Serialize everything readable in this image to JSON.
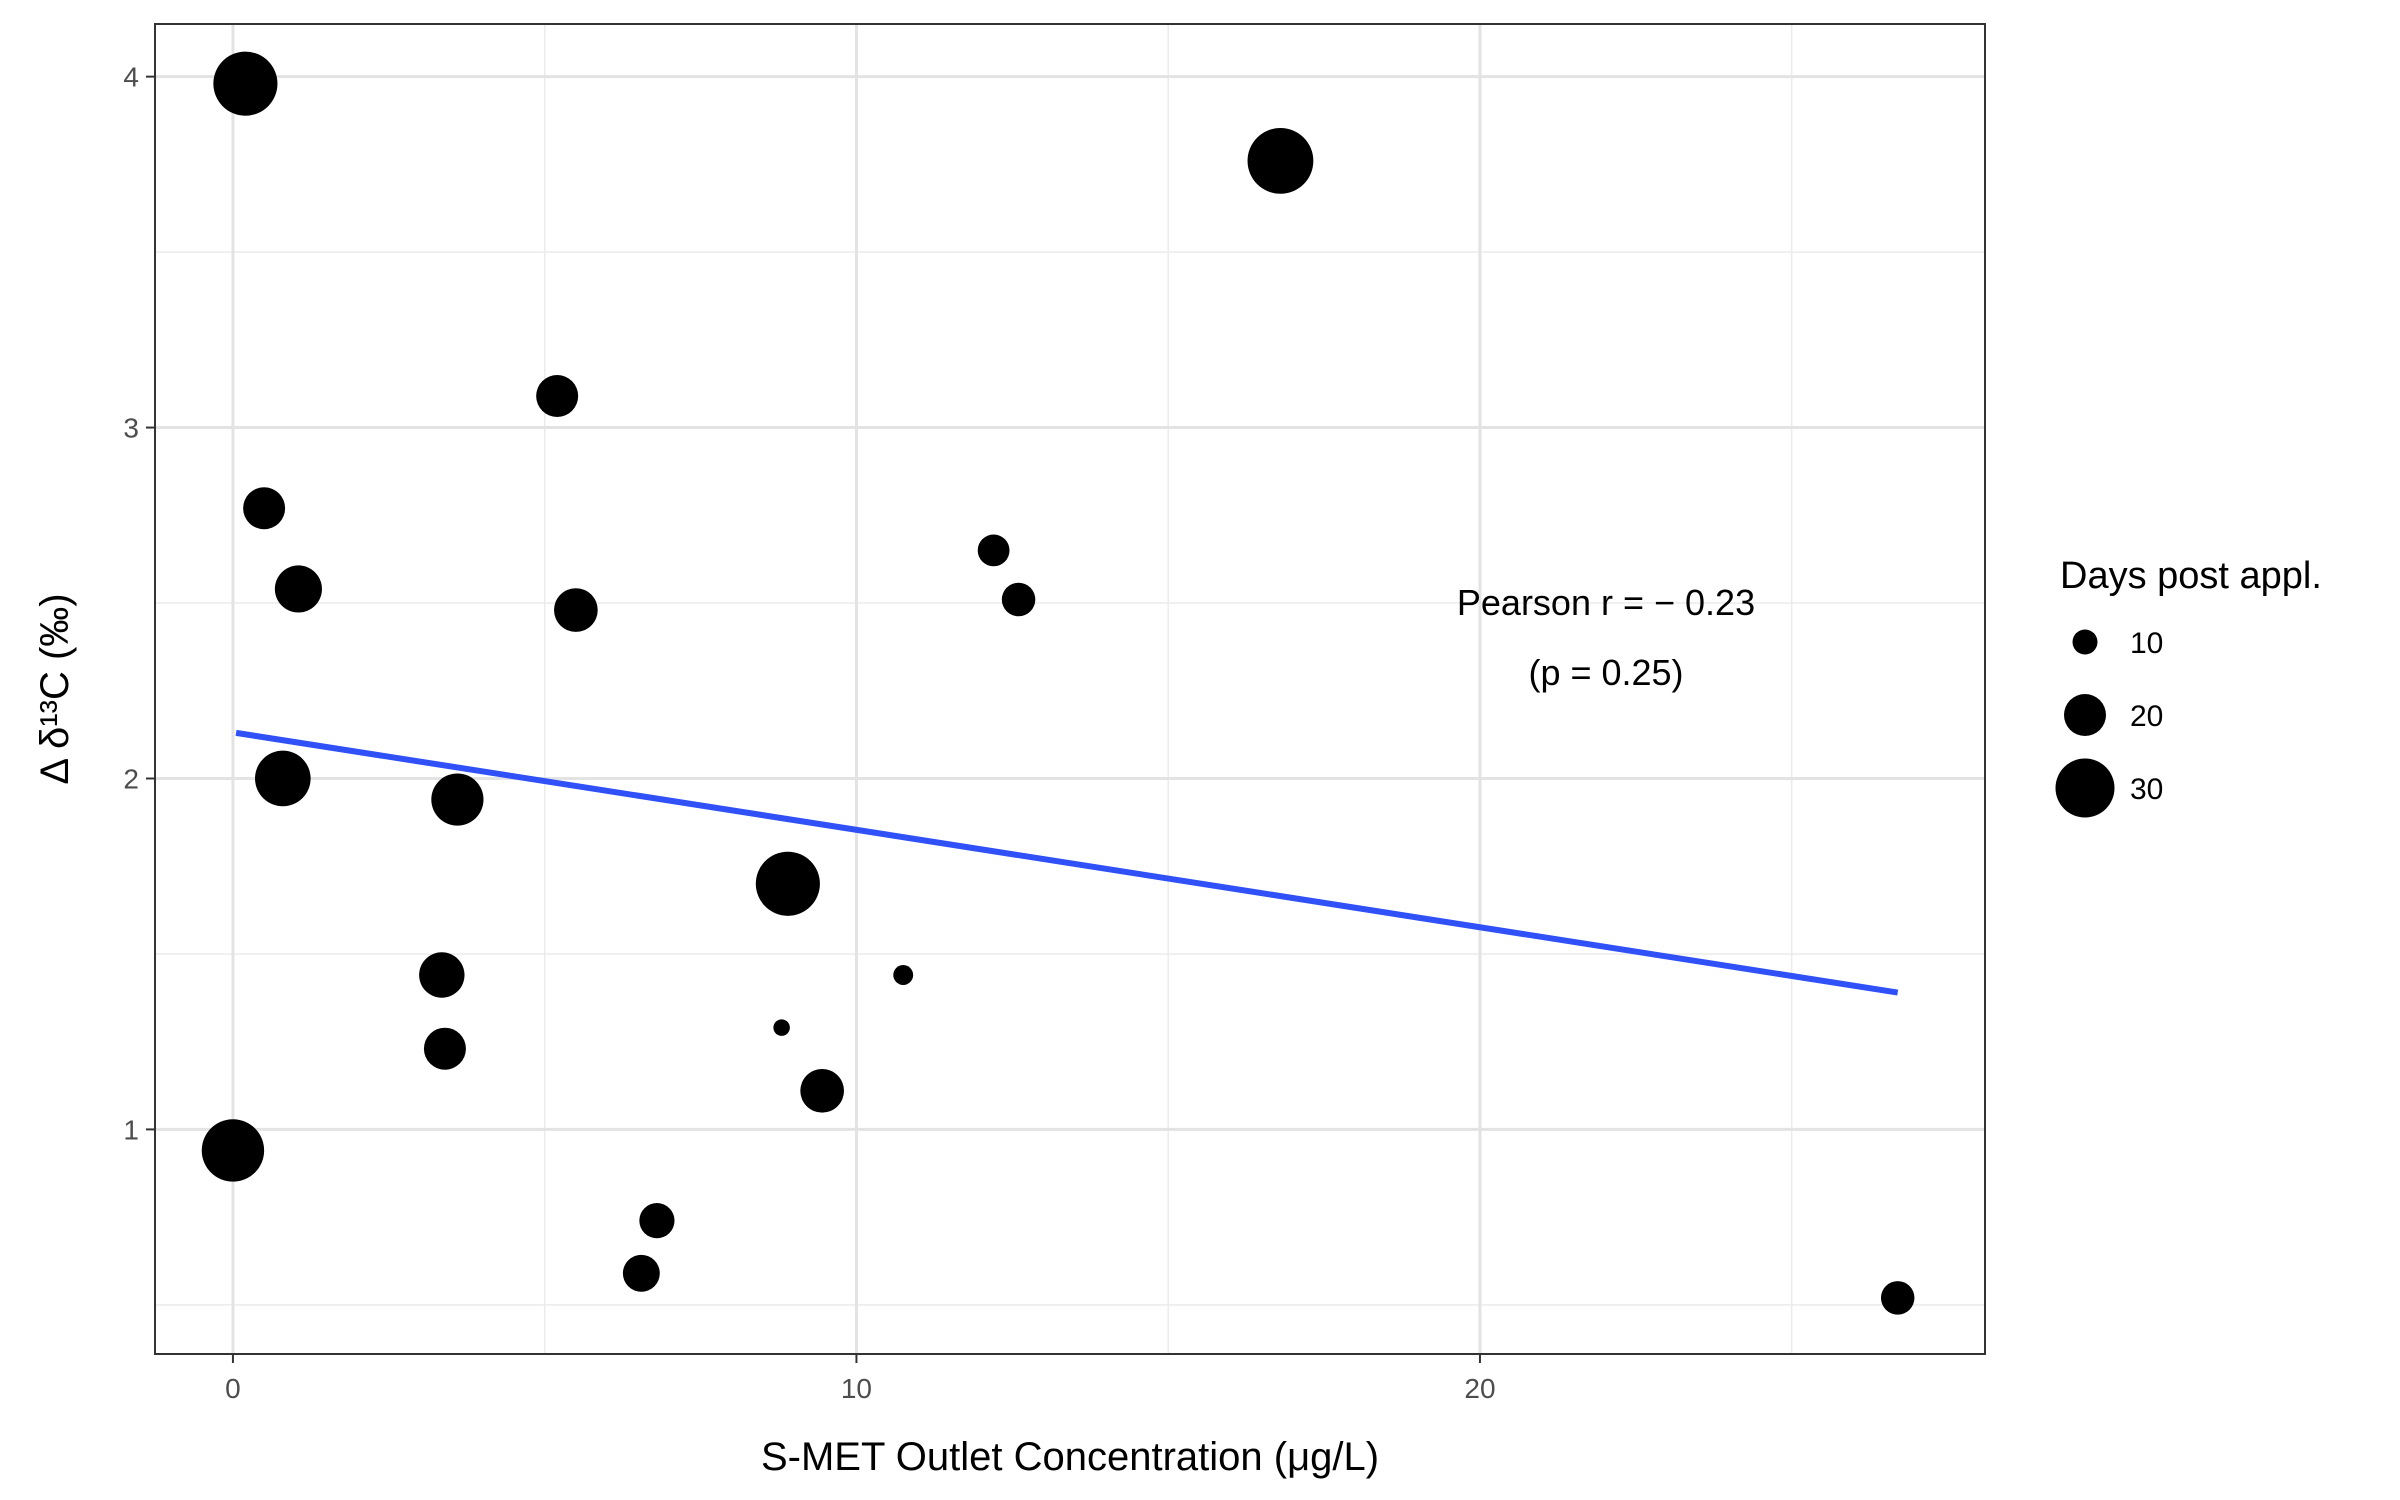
{
  "chart_data": {
    "type": "scatter",
    "xlabel": "S-MET Outlet Concentration (μg/L)",
    "ylabel": "Δ δ¹³C (‰)",
    "xlim": [
      -1.25,
      28.1
    ],
    "ylim": [
      0.36,
      4.15
    ],
    "x_ticks": [
      0,
      10,
      20
    ],
    "y_ticks": [
      1,
      2,
      3,
      4
    ],
    "x_minor_ticks": [
      5,
      15,
      25
    ],
    "y_minor_ticks": [
      0.5,
      1.5,
      2.5,
      3.5
    ],
    "grid": true,
    "point_color": "#000000",
    "trend_color": "#3050f8",
    "trendline": {
      "x": [
        0.05,
        26.7
      ],
      "y": [
        2.13,
        1.39
      ]
    },
    "annotation": {
      "line1": "Pearson r = − 0.23",
      "line2": "(p = 0.25)"
    },
    "legend": {
      "title": "Days post appl.",
      "position": "right",
      "entries": [
        {
          "label": "10",
          "days": 10
        },
        {
          "label": "20",
          "days": 20
        },
        {
          "label": "30",
          "days": 30
        }
      ]
    },
    "points": [
      {
        "x": 0.2,
        "y": 3.98,
        "days": 33
      },
      {
        "x": 0.5,
        "y": 2.77,
        "days": 20
      },
      {
        "x": 1.05,
        "y": 2.54,
        "days": 23
      },
      {
        "x": 0.8,
        "y": 2.0,
        "days": 28
      },
      {
        "x": 0.0,
        "y": 0.94,
        "days": 32
      },
      {
        "x": 3.6,
        "y": 1.94,
        "days": 26
      },
      {
        "x": 3.35,
        "y": 1.44,
        "days": 22
      },
      {
        "x": 3.4,
        "y": 1.23,
        "days": 20
      },
      {
        "x": 5.2,
        "y": 3.09,
        "days": 20
      },
      {
        "x": 5.5,
        "y": 2.48,
        "days": 21
      },
      {
        "x": 6.55,
        "y": 0.59,
        "days": 17
      },
      {
        "x": 6.8,
        "y": 0.74,
        "days": 16
      },
      {
        "x": 8.9,
        "y": 1.7,
        "days": 33
      },
      {
        "x": 8.8,
        "y": 1.29,
        "days": 5
      },
      {
        "x": 9.45,
        "y": 1.11,
        "days": 21
      },
      {
        "x": 10.75,
        "y": 1.44,
        "days": 7
      },
      {
        "x": 12.2,
        "y": 2.65,
        "days": 14
      },
      {
        "x": 12.6,
        "y": 2.51,
        "days": 15
      },
      {
        "x": 16.8,
        "y": 3.76,
        "days": 34
      },
      {
        "x": 26.7,
        "y": 0.52,
        "days": 15
      }
    ]
  }
}
